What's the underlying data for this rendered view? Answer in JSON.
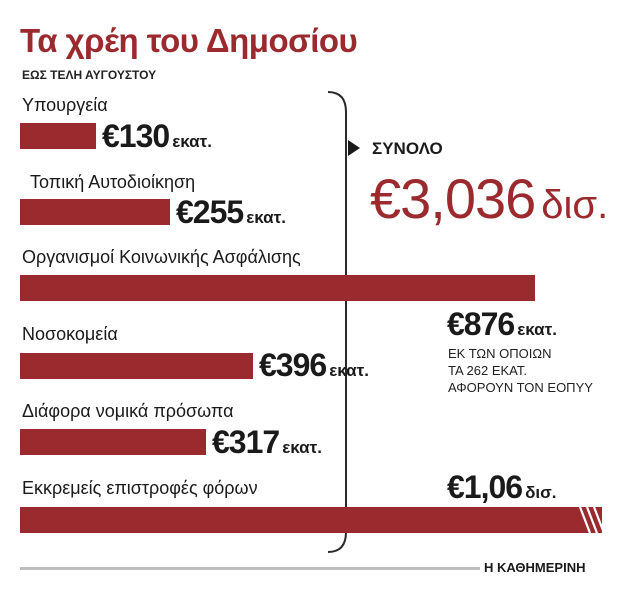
{
  "header": {
    "title": "Τα χρέη του Δημοσίου",
    "subtitle": "ΕΩΣ ΤΕΛΗ ΑΥΓΟΥΣΤΟΥ"
  },
  "total": {
    "label": "ΣΥΝΟΛΟ",
    "value": "€3,036",
    "unit": "δισ."
  },
  "note_lines": [
    "ΕΚ ΤΩΝ ΟΠΟΙΩΝ",
    "ΤΑ 262 ΕΚΑΤ.",
    "ΑΦΟΡΟΥΝ ΤΟΝ ΕΟΠΥΥ"
  ],
  "source": "Η ΚΑΘΗΜΕΡΙΝΗ",
  "colors": {
    "bar": "#9b2a2f",
    "title": "#9b2a2f",
    "rule": "#bdbdbd"
  },
  "chart_data": {
    "type": "bar",
    "orientation": "horizontal",
    "unit": "εκατ. €",
    "categories": [
      "Υπουργεία",
      "Τοπική Αυτοδιοίκηση",
      "Οργανισμοί Κοινωνικής Ασφάλισης",
      "Νοσοκομεία",
      "Διάφορα νομικά πρόσωπα",
      "Εκκρεμείς επιστροφές φόρων"
    ],
    "values": [
      130,
      255,
      876,
      396,
      317,
      1060
    ],
    "value_labels": [
      {
        "num": "€130",
        "unit": "εκατ."
      },
      {
        "num": "€255",
        "unit": "εκατ."
      },
      {
        "num": "€876",
        "unit": "εκατ."
      },
      {
        "num": "€396",
        "unit": "εκατ."
      },
      {
        "num": "€317",
        "unit": "εκατ."
      },
      {
        "num": "€1,06",
        "unit": "δισ."
      }
    ],
    "bar_truncated": [
      false,
      false,
      false,
      false,
      false,
      true
    ]
  }
}
